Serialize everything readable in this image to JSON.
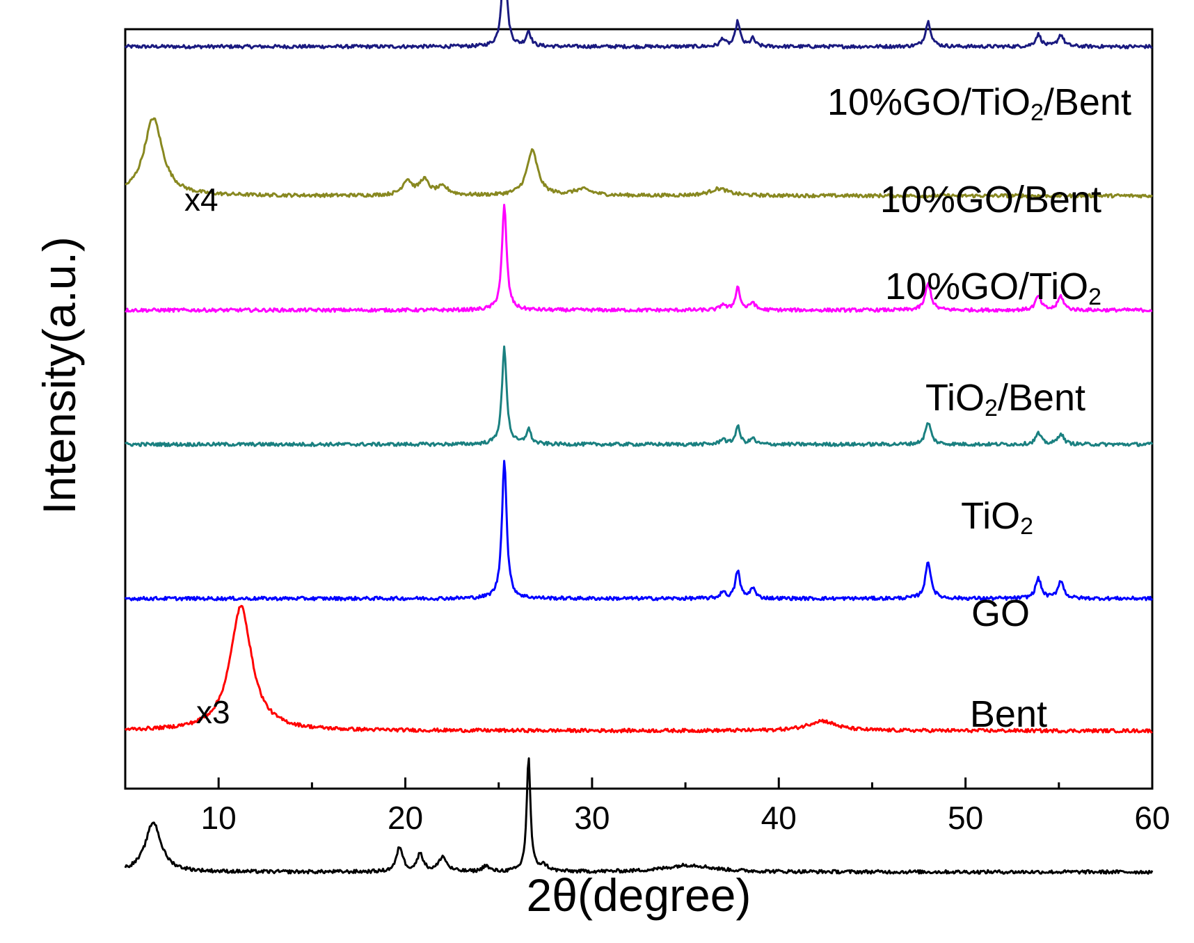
{
  "chart_data": {
    "type": "line",
    "title": "",
    "xlabel": "2θ(degree)",
    "ylabel": "Intensity(a.u.)",
    "xlim": [
      5,
      60
    ],
    "xticks": [
      10,
      20,
      30,
      40,
      50,
      60
    ],
    "yticks": "none",
    "grid": false,
    "legend": "inline labels at right of each trace",
    "series": [
      {
        "name": "10%GO/TiO2/Bent",
        "label": {
          "main": "10%GO/TiO",
          "sub": "2",
          "tail": "/Bent"
        },
        "color": "#1a1a80",
        "baseline": 7.0,
        "peaks": [
          [
            25.3,
            1.0,
            0.15
          ],
          [
            26.6,
            0.15,
            0.15
          ],
          [
            37.0,
            0.08,
            0.15
          ],
          [
            37.8,
            0.25,
            0.15
          ],
          [
            38.6,
            0.08,
            0.15
          ],
          [
            48.0,
            0.25,
            0.18
          ],
          [
            53.9,
            0.12,
            0.18
          ],
          [
            55.1,
            0.12,
            0.18
          ]
        ]
      },
      {
        "name": "10%GO/Bent",
        "label": {
          "main": "10%GO/Bent",
          "sub": "",
          "tail": ""
        },
        "scale_note": "x4",
        "color": "#888820",
        "baseline": 5.5,
        "peaks": [
          [
            6.5,
            0.78,
            0.6
          ],
          [
            20.1,
            0.15,
            0.3
          ],
          [
            21.0,
            0.15,
            0.3
          ],
          [
            22.0,
            0.08,
            0.4
          ],
          [
            26.8,
            0.45,
            0.35
          ],
          [
            29.5,
            0.06,
            0.6
          ],
          [
            36.8,
            0.07,
            0.6
          ]
        ]
      },
      {
        "name": "10%GO/TiO2",
        "label": {
          "main": "10%GO/TiO",
          "sub": "2",
          "tail": ""
        },
        "color": "#ff00ff",
        "baseline": 4.35,
        "peaks": [
          [
            25.3,
            1.05,
            0.15
          ],
          [
            37.0,
            0.06,
            0.15
          ],
          [
            37.8,
            0.23,
            0.15
          ],
          [
            38.6,
            0.08,
            0.15
          ],
          [
            48.0,
            0.27,
            0.18
          ],
          [
            53.9,
            0.14,
            0.18
          ],
          [
            55.1,
            0.14,
            0.18
          ]
        ]
      },
      {
        "name": "TiO2/Bent",
        "label": {
          "main": "TiO",
          "sub": "2",
          "tail": "/Bent"
        },
        "color": "#1a8080",
        "baseline": 3.0,
        "peaks": [
          [
            25.3,
            0.97,
            0.15
          ],
          [
            26.6,
            0.15,
            0.15
          ],
          [
            37.0,
            0.06,
            0.15
          ],
          [
            37.8,
            0.18,
            0.15
          ],
          [
            38.6,
            0.06,
            0.15
          ],
          [
            48.0,
            0.22,
            0.18
          ],
          [
            53.9,
            0.11,
            0.18
          ],
          [
            55.1,
            0.11,
            0.18
          ]
        ]
      },
      {
        "name": "TiO2",
        "label": {
          "main": "TiO",
          "sub": "2",
          "tail": ""
        },
        "color": "#0000ff",
        "baseline": 1.45,
        "peaks": [
          [
            25.3,
            1.4,
            0.15
          ],
          [
            37.0,
            0.07,
            0.15
          ],
          [
            37.8,
            0.28,
            0.15
          ],
          [
            38.6,
            0.11,
            0.15
          ],
          [
            48.0,
            0.37,
            0.18
          ],
          [
            53.9,
            0.2,
            0.18
          ],
          [
            55.1,
            0.18,
            0.18
          ]
        ]
      },
      {
        "name": "GO",
        "label": {
          "main": "GO",
          "sub": "",
          "tail": ""
        },
        "color": "#ff0000",
        "baseline": 0.12,
        "peaks": [
          [
            11.2,
            1.25,
            0.7
          ],
          [
            42.3,
            0.1,
            0.9
          ]
        ]
      },
      {
        "name": "Bent",
        "label": {
          "main": "Bent",
          "sub": "",
          "tail": ""
        },
        "scale_note": "x3",
        "color": "#000000",
        "baseline": -1.3,
        "peaks": [
          [
            6.5,
            0.5,
            0.5
          ],
          [
            19.7,
            0.25,
            0.2
          ],
          [
            20.8,
            0.18,
            0.2
          ],
          [
            22.0,
            0.15,
            0.25
          ],
          [
            24.3,
            0.06,
            0.2
          ],
          [
            26.6,
            1.15,
            0.12
          ],
          [
            27.4,
            0.06,
            0.3
          ],
          [
            35.2,
            0.07,
            1.5
          ]
        ]
      }
    ]
  }
}
